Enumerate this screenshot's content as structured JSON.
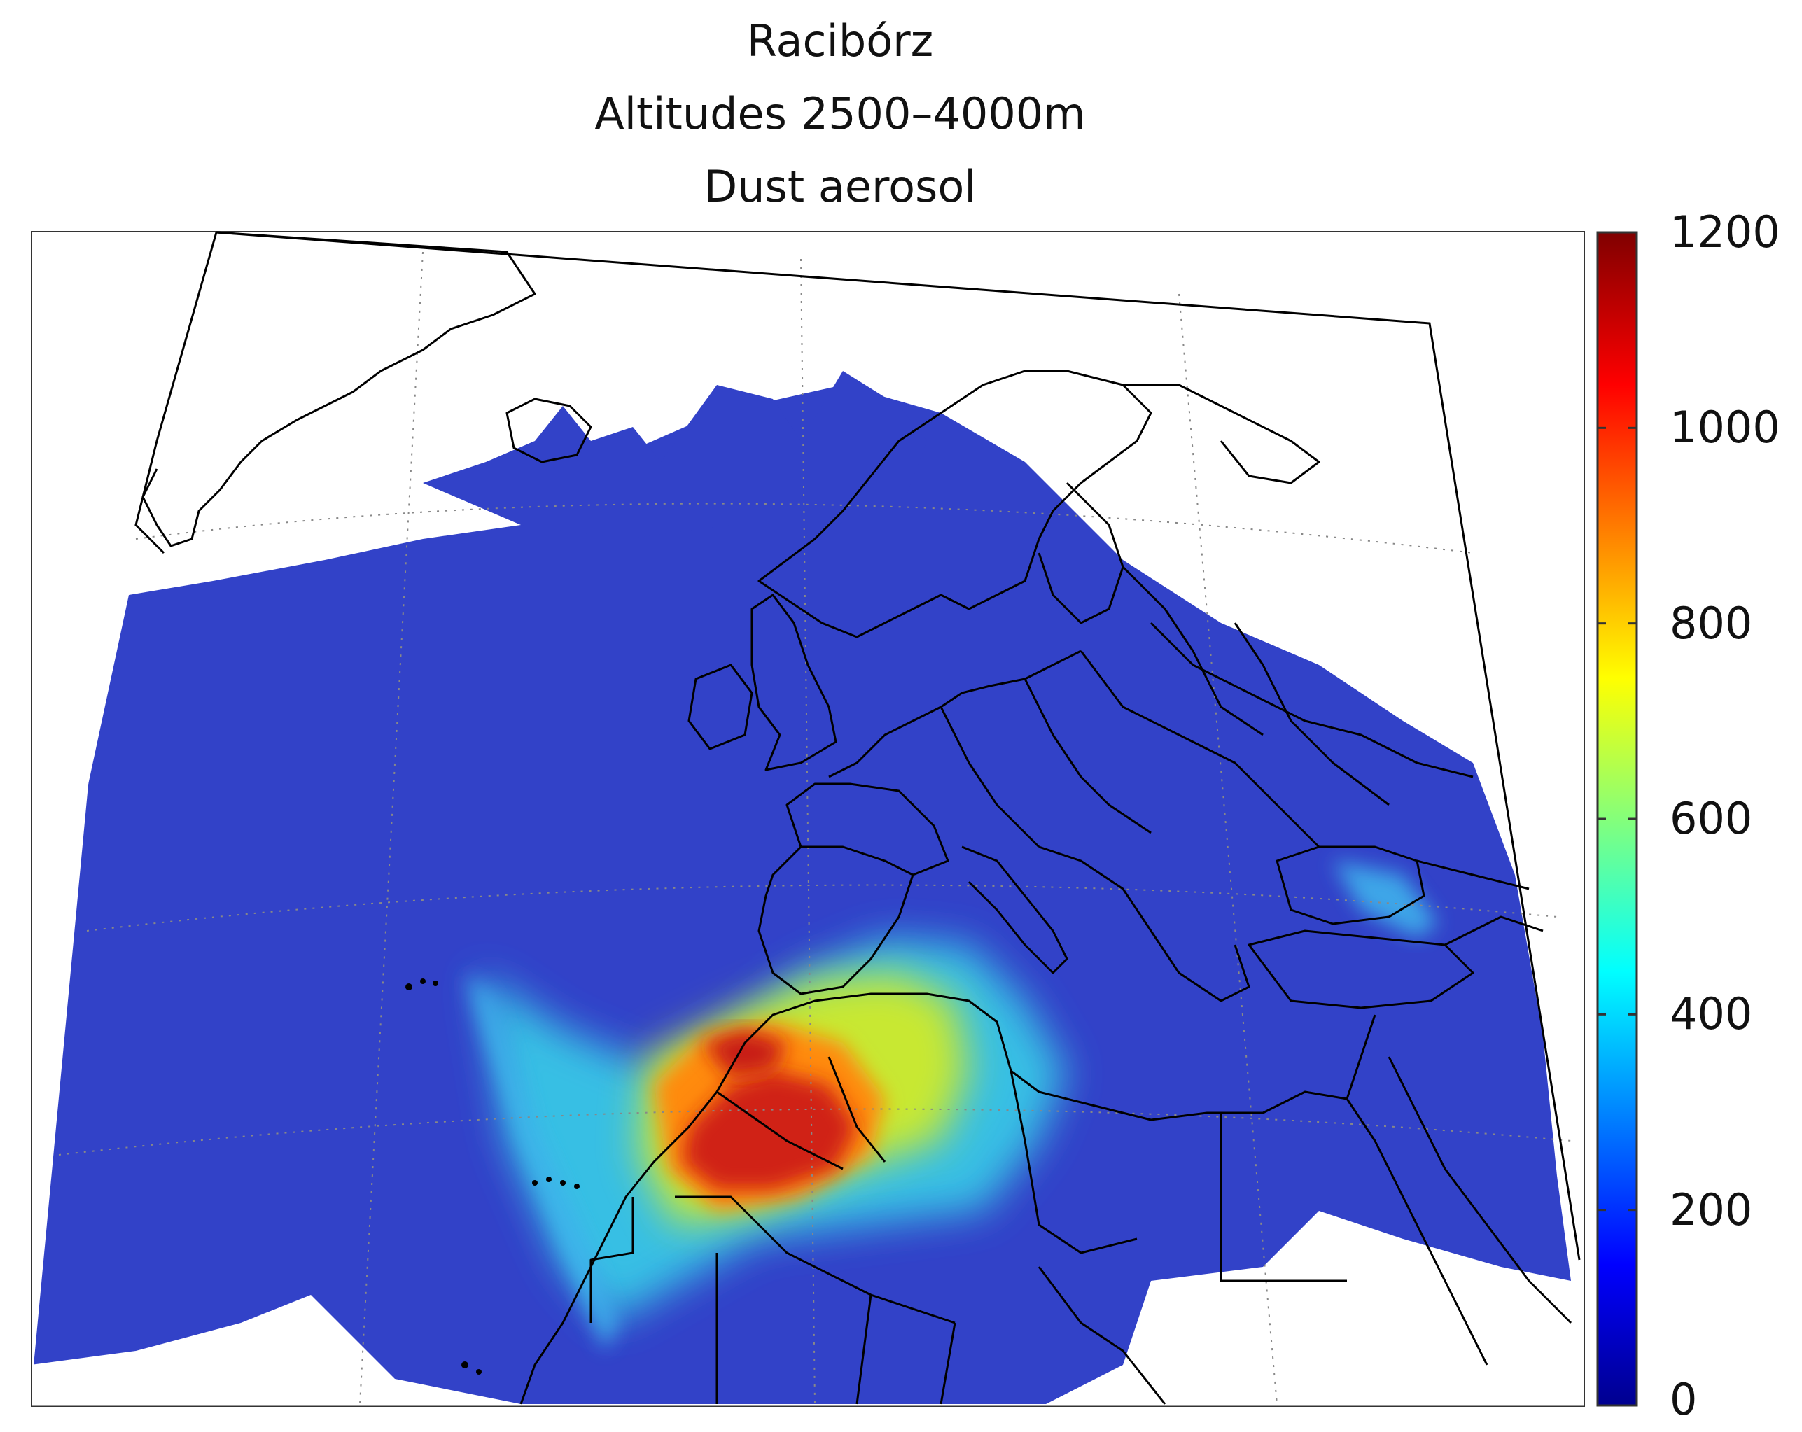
{
  "title": {
    "line1": "Racibórz",
    "line2": "Altitudes 2500–4000m",
    "line3": "Dust aerosol"
  },
  "colorbar": {
    "min": 0,
    "max": 1200,
    "ticks": [
      "0",
      "200",
      "400",
      "600",
      "800",
      "1000",
      "1200"
    ],
    "colormap": "jet",
    "colors": [
      "#00008f",
      "#0000ff",
      "#00ffff",
      "#ffff00",
      "#ff0000",
      "#800000"
    ]
  },
  "map": {
    "region": "North Atlantic, Europe and North Africa",
    "projection": "Lambert conformal",
    "background_color": "#ffffff",
    "low_concentration_color": "#3344cc",
    "graticule": "dotted"
  }
}
